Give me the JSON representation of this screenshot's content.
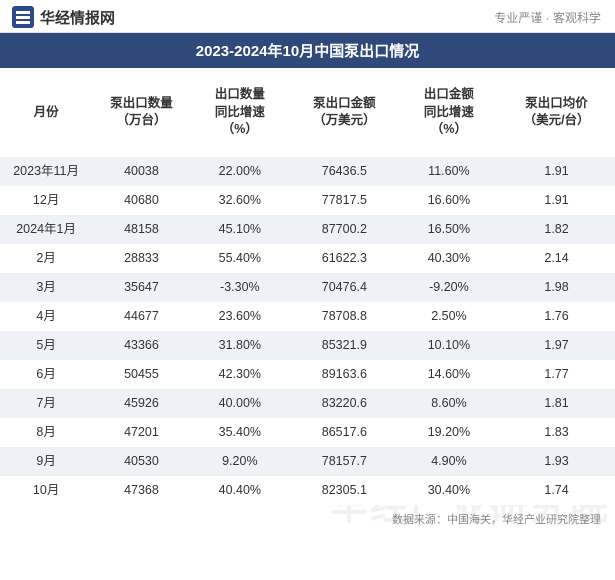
{
  "header": {
    "logo_text": "华经情报网",
    "tagline": "专业严谨 · 客观科学"
  },
  "title": "2023-2024年10月中国泵出口情况",
  "watermark": "华经产业研究院",
  "columns": [
    "月份",
    "泵出口数量\n（万台）",
    "出口数量\n同比增速\n（%）",
    "泵出口金额\n（万美元）",
    "出口金额\n同比增速\n（%）",
    "泵出口均价\n（美元/台）"
  ],
  "rows": [
    {
      "month": "2023年11月",
      "qty": "40038",
      "qtyg": "22.00%",
      "amt": "76436.5",
      "amtg": "11.60%",
      "price": "1.91",
      "neg_qtyg": false,
      "neg_amtg": false
    },
    {
      "month": "12月",
      "qty": "40680",
      "qtyg": "32.60%",
      "amt": "77817.5",
      "amtg": "16.60%",
      "price": "1.91",
      "neg_qtyg": false,
      "neg_amtg": false
    },
    {
      "month": "2024年1月",
      "qty": "48158",
      "qtyg": "45.10%",
      "amt": "87700.2",
      "amtg": "16.50%",
      "price": "1.82",
      "neg_qtyg": false,
      "neg_amtg": false
    },
    {
      "month": "2月",
      "qty": "28833",
      "qtyg": "55.40%",
      "amt": "61622.3",
      "amtg": "40.30%",
      "price": "2.14",
      "neg_qtyg": false,
      "neg_amtg": false
    },
    {
      "month": "3月",
      "qty": "35647",
      "qtyg": "-3.30%",
      "amt": "70476.4",
      "amtg": "-9.20%",
      "price": "1.98",
      "neg_qtyg": true,
      "neg_amtg": true
    },
    {
      "month": "4月",
      "qty": "44677",
      "qtyg": "23.60%",
      "amt": "78708.8",
      "amtg": "2.50%",
      "price": "1.76",
      "neg_qtyg": false,
      "neg_amtg": false
    },
    {
      "month": "5月",
      "qty": "43366",
      "qtyg": "31.80%",
      "amt": "85321.9",
      "amtg": "10.10%",
      "price": "1.97",
      "neg_qtyg": false,
      "neg_amtg": false
    },
    {
      "month": "6月",
      "qty": "50455",
      "qtyg": "42.30%",
      "amt": "89163.6",
      "amtg": "14.60%",
      "price": "1.77",
      "neg_qtyg": false,
      "neg_amtg": false
    },
    {
      "month": "7月",
      "qty": "45926",
      "qtyg": "40.00%",
      "amt": "83220.6",
      "amtg": "8.60%",
      "price": "1.81",
      "neg_qtyg": false,
      "neg_amtg": false
    },
    {
      "month": "8月",
      "qty": "47201",
      "qtyg": "35.40%",
      "amt": "86517.6",
      "amtg": "19.20%",
      "price": "1.83",
      "neg_qtyg": false,
      "neg_amtg": false
    },
    {
      "month": "9月",
      "qty": "40530",
      "qtyg": "9.20%",
      "amt": "78157.7",
      "amtg": "4.90%",
      "price": "1.93",
      "neg_qtyg": false,
      "neg_amtg": false
    },
    {
      "month": "10月",
      "qty": "47368",
      "qtyg": "40.40%",
      "amt": "82305.1",
      "amtg": "30.40%",
      "price": "1.74",
      "neg_qtyg": false,
      "neg_amtg": false
    }
  ],
  "source": "数据来源：中国海关，华经产业研究院整理",
  "styling": {
    "title_bg": "#2f4a7a",
    "title_color": "#ffffff",
    "row_odd_bg": "#eef1f6",
    "row_even_bg": "#ffffff",
    "negative_color": "#3a6fd8",
    "text_color": "#333333",
    "watermark_color": "rgba(200,200,200,0.25)",
    "header_fontsize": 12.5,
    "cell_fontsize": 12.5,
    "title_fontsize": 15
  }
}
